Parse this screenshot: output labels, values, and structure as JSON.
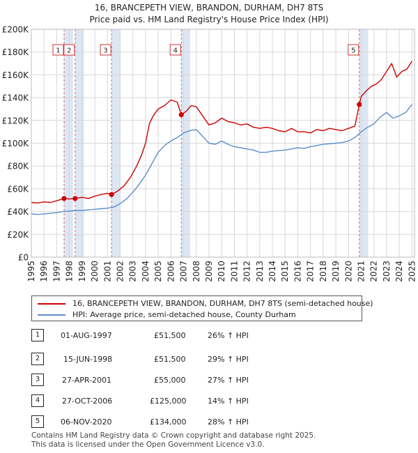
{
  "header": {
    "title_line1": "16, BRANCEPETH VIEW, BRANDON, DURHAM, DH7 8TS",
    "title_line2": "Price paid vs. HM Land Registry's House Price Index (HPI)"
  },
  "colors": {
    "property": "#cc0000",
    "hpi": "#5b8ec9",
    "band": "#dde6f3",
    "vline": "#e06060"
  },
  "chart_data": {
    "type": "line",
    "title": "16, BRANCEPETH VIEW, BRANDON, DURHAM, DH7 8TS — Price paid vs. HM Land Registry's House Price Index (HPI)",
    "xlabel": "",
    "ylabel": "",
    "xlim": [
      1995,
      2025.2
    ],
    "ylim": [
      0,
      200000
    ],
    "y_ticks": [
      0,
      20000,
      40000,
      60000,
      80000,
      100000,
      120000,
      140000,
      160000,
      180000,
      200000
    ],
    "y_tick_labels": [
      "£0",
      "£20K",
      "£40K",
      "£60K",
      "£80K",
      "£100K",
      "£120K",
      "£140K",
      "£160K",
      "£180K",
      "£200K"
    ],
    "x_ticks": [
      1995,
      1996,
      1997,
      1998,
      1999,
      2000,
      2001,
      2002,
      2003,
      2004,
      2005,
      2006,
      2007,
      2008,
      2009,
      2010,
      2011,
      2012,
      2013,
      2014,
      2015,
      2016,
      2017,
      2018,
      2019,
      2020,
      2021,
      2022,
      2023,
      2024,
      2025
    ],
    "x_tick_labels": [
      "1995",
      "1996",
      "1997",
      "1998",
      "1999",
      "2000",
      "2001",
      "2002",
      "2003",
      "2004",
      "2005",
      "2006",
      "2007",
      "2008",
      "2009",
      "2010",
      "2011",
      "2012",
      "2013",
      "2014",
      "2015",
      "2016",
      "2017",
      "2018",
      "2019",
      "2020",
      "2021",
      "2022",
      "2023",
      "2024",
      "2025"
    ],
    "grid": true,
    "series": [
      {
        "name": "16, BRANCEPETH VIEW, BRANDON, DURHAM, DH7 8TS (semi-detached house)",
        "x": [
          1995,
          1995.5,
          1996,
          1996.5,
          1997,
          1997.58,
          1998,
          1998.45,
          1999,
          1999.5,
          2000,
          2000.5,
          2001,
          2001.32,
          2001.8,
          2002.3,
          2002.8,
          2003.3,
          2003.7,
          2004,
          2004.3,
          2004.6,
          2005,
          2005.5,
          2006,
          2006.5,
          2006.82,
          2007.2,
          2007.6,
          2008,
          2008.5,
          2009,
          2009.5,
          2010,
          2010.5,
          2011,
          2011.5,
          2012,
          2012.5,
          2013,
          2013.5,
          2014,
          2014.5,
          2015,
          2015.5,
          2016,
          2016.5,
          2017,
          2017.5,
          2018,
          2018.5,
          2019,
          2019.5,
          2020,
          2020.5,
          2020.85,
          2021,
          2021.4,
          2021.8,
          2022.2,
          2022.6,
          2023,
          2023.4,
          2023.8,
          2024.2,
          2024.6,
          2025
        ],
        "values": [
          48000,
          47500,
          48500,
          48000,
          49500,
          51500,
          51000,
          51500,
          52500,
          51500,
          53500,
          55000,
          56000,
          55000,
          58000,
          62500,
          70000,
          80000,
          90000,
          100000,
          117000,
          124000,
          130000,
          133000,
          138000,
          136000,
          125000,
          128000,
          133000,
          132000,
          124000,
          116000,
          118000,
          122000,
          119000,
          118000,
          116000,
          117000,
          114000,
          113000,
          114000,
          113000,
          111000,
          110000,
          113000,
          110000,
          110000,
          109000,
          112000,
          111000,
          113000,
          112000,
          111000,
          113000,
          115000,
          134000,
          141000,
          146000,
          150000,
          152000,
          156000,
          163000,
          170000,
          158000,
          163000,
          165000,
          172000
        ]
      },
      {
        "name": "HPI: Average price, semi-detached house, County Durham",
        "x": [
          1995,
          1995.5,
          1996,
          1996.5,
          1997,
          1997.5,
          1998,
          1998.5,
          1999,
          1999.5,
          2000,
          2000.5,
          2001,
          2001.5,
          2002,
          2002.5,
          2003,
          2003.5,
          2004,
          2004.5,
          2005,
          2005.5,
          2006,
          2006.5,
          2007,
          2007.5,
          2008,
          2008.5,
          2009,
          2009.5,
          2010,
          2010.5,
          2011,
          2011.5,
          2012,
          2012.5,
          2013,
          2013.5,
          2014,
          2014.5,
          2015,
          2015.5,
          2016,
          2016.5,
          2017,
          2017.5,
          2018,
          2018.5,
          2019,
          2019.5,
          2020,
          2020.5,
          2021,
          2021.5,
          2022,
          2022.5,
          2023,
          2023.5,
          2024,
          2024.5,
          2025
        ],
        "values": [
          38000,
          37500,
          38000,
          38500,
          39000,
          40000,
          40500,
          41000,
          41000,
          41500,
          42000,
          42500,
          43000,
          44000,
          47000,
          51000,
          57000,
          64000,
          72000,
          82000,
          92000,
          98000,
          102000,
          105000,
          109000,
          111000,
          112000,
          106000,
          100000,
          99000,
          102000,
          99000,
          97000,
          96000,
          95000,
          94000,
          92000,
          92000,
          93000,
          93500,
          94000,
          95000,
          96000,
          95500,
          97000,
          98000,
          99000,
          99500,
          100000,
          100500,
          102000,
          105000,
          110000,
          114000,
          117000,
          123000,
          127000,
          122000,
          124000,
          127000,
          134000
        ]
      }
    ],
    "events": [
      {
        "label": "1",
        "x": 1997.58
      },
      {
        "label": "2",
        "x": 1998.45
      },
      {
        "label": "3",
        "x": 2001.32
      },
      {
        "label": "4",
        "x": 2006.82
      },
      {
        "label": "5",
        "x": 2020.85
      }
    ],
    "sales": [
      {
        "x": 1997.58,
        "y": 51500
      },
      {
        "x": 1998.45,
        "y": 51500
      },
      {
        "x": 2001.32,
        "y": 55000
      },
      {
        "x": 2006.82,
        "y": 125000
      },
      {
        "x": 2020.85,
        "y": 134000
      }
    ]
  },
  "legend": {
    "property_label": "16, BRANCEPETH VIEW, BRANDON, DURHAM, DH7 8TS (semi-detached house)",
    "hpi_label": "HPI: Average price, semi-detached house, County Durham"
  },
  "transactions": [
    {
      "num": "1",
      "date": "01-AUG-1997",
      "price": "£51,500",
      "hpi": "26% ↑ HPI"
    },
    {
      "num": "2",
      "date": "15-JUN-1998",
      "price": "£51,500",
      "hpi": "29% ↑ HPI"
    },
    {
      "num": "3",
      "date": "27-APR-2001",
      "price": "£55,000",
      "hpi": "27% ↑ HPI"
    },
    {
      "num": "4",
      "date": "27-OCT-2006",
      "price": "£125,000",
      "hpi": "14% ↑ HPI"
    },
    {
      "num": "5",
      "date": "06-NOV-2020",
      "price": "£134,000",
      "hpi": "28% ↑ HPI"
    }
  ],
  "footer": {
    "line1": "Contains HM Land Registry data © Crown copyright and database right 2025.",
    "line2": "This data is licensed under the Open Government Licence v3.0."
  }
}
